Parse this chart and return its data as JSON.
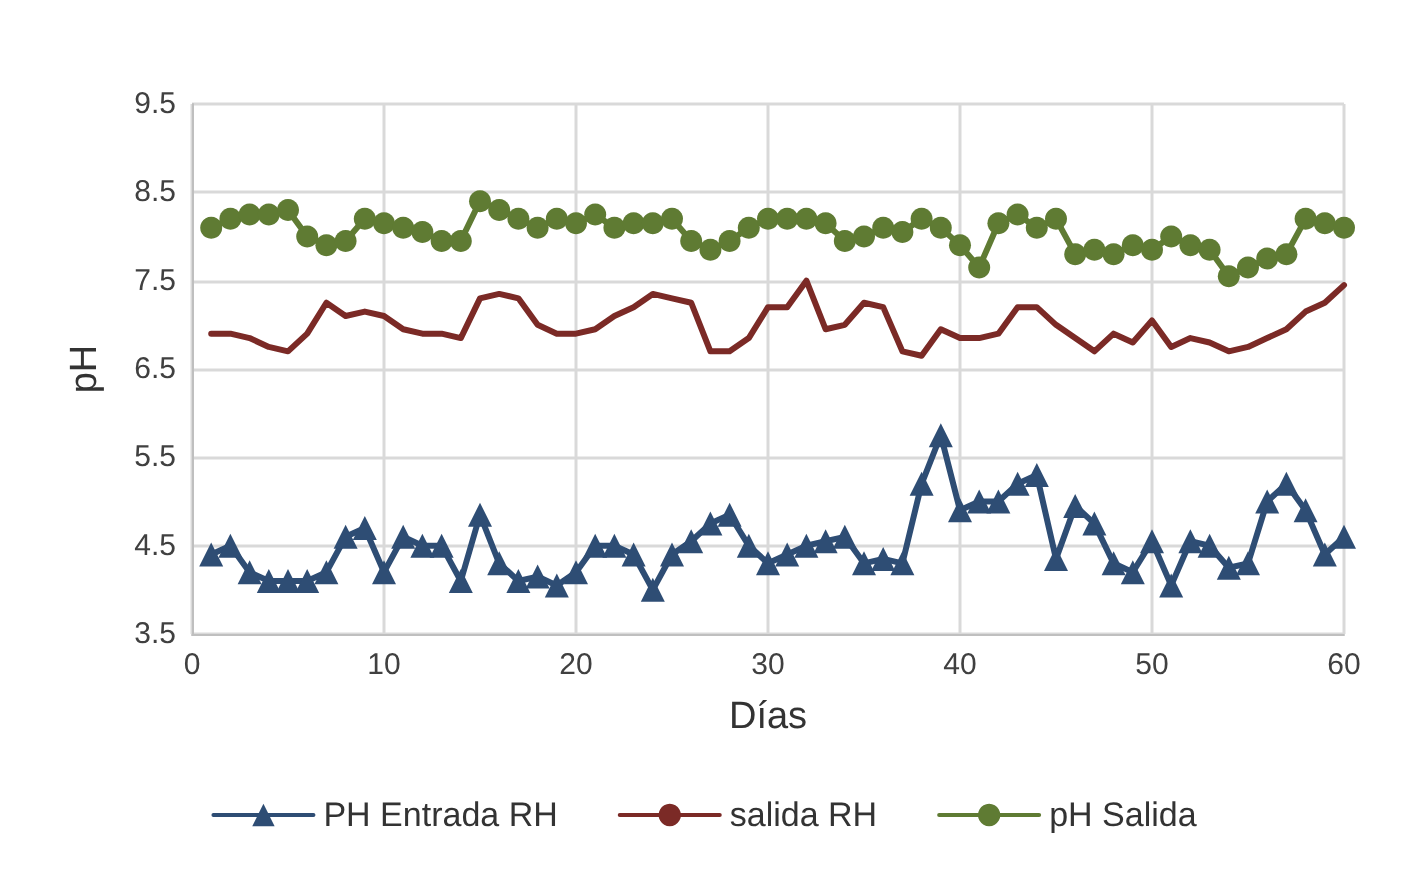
{
  "chart_data": {
    "type": "line",
    "xlabel": "Días",
    "ylabel": "pH",
    "x": [
      1,
      2,
      3,
      4,
      5,
      6,
      7,
      8,
      9,
      10,
      11,
      12,
      13,
      14,
      15,
      16,
      17,
      18,
      19,
      20,
      21,
      22,
      23,
      24,
      25,
      26,
      27,
      28,
      29,
      30,
      31,
      32,
      33,
      34,
      35,
      36,
      37,
      38,
      39,
      40,
      41,
      42,
      43,
      44,
      45,
      46,
      47,
      48,
      49,
      50,
      51,
      52,
      53,
      54,
      55,
      56,
      57,
      58,
      59,
      60
    ],
    "series": [
      {
        "name": "PH Entrada RH",
        "color": "#2e4d74",
        "marker": "triangle",
        "values": [
          4.4,
          4.5,
          4.2,
          4.1,
          4.1,
          4.1,
          4.2,
          4.6,
          4.7,
          4.2,
          4.6,
          4.5,
          4.5,
          4.1,
          4.85,
          4.3,
          4.1,
          4.15,
          4.05,
          4.2,
          4.5,
          4.5,
          4.4,
          4.0,
          4.4,
          4.55,
          4.75,
          4.85,
          4.5,
          4.3,
          4.4,
          4.5,
          4.55,
          4.6,
          4.3,
          4.35,
          4.3,
          5.2,
          5.75,
          4.9,
          5.0,
          5.0,
          5.2,
          5.3,
          4.35,
          4.95,
          4.75,
          4.3,
          4.2,
          4.55,
          4.05,
          4.55,
          4.5,
          4.25,
          4.3,
          5.0,
          5.2,
          4.9,
          4.4,
          4.6
        ]
      },
      {
        "name": "salida RH",
        "color": "#7b2a26",
        "marker": "none",
        "values": [
          6.9,
          6.9,
          6.85,
          6.75,
          6.7,
          6.9,
          7.25,
          7.1,
          7.15,
          7.1,
          6.95,
          6.9,
          6.9,
          6.85,
          7.3,
          7.35,
          7.3,
          7.0,
          6.9,
          6.9,
          6.95,
          7.1,
          7.2,
          7.35,
          7.3,
          7.25,
          6.7,
          6.7,
          6.85,
          7.2,
          7.2,
          7.5,
          6.95,
          7.0,
          7.25,
          7.2,
          6.7,
          6.65,
          6.95,
          6.85,
          6.85,
          6.9,
          7.2,
          7.2,
          7.0,
          6.85,
          6.7,
          6.9,
          6.8,
          7.05,
          6.75,
          6.85,
          6.8,
          6.7,
          6.75,
          6.85,
          6.95,
          7.15,
          7.25,
          7.45
        ]
      },
      {
        "name": "pH Salida",
        "color": "#5f7b33",
        "marker": "circle",
        "values": [
          8.1,
          8.2,
          8.25,
          8.25,
          8.3,
          8.0,
          7.9,
          7.95,
          8.2,
          8.15,
          8.1,
          8.05,
          7.95,
          7.95,
          8.4,
          8.3,
          8.2,
          8.1,
          8.2,
          8.15,
          8.25,
          8.1,
          8.15,
          8.15,
          8.2,
          7.95,
          7.85,
          7.95,
          8.1,
          8.2,
          8.2,
          8.2,
          8.15,
          7.95,
          8.0,
          8.1,
          8.05,
          8.2,
          8.1,
          7.9,
          7.65,
          8.15,
          8.25,
          8.1,
          8.2,
          7.8,
          7.85,
          7.8,
          7.9,
          7.85,
          8.0,
          7.9,
          7.85,
          7.55,
          7.65,
          7.75,
          7.8,
          8.2,
          8.15,
          8.1
        ]
      }
    ],
    "xlim": [
      0,
      60
    ],
    "xticks": [
      0,
      10,
      20,
      30,
      40,
      50,
      60
    ],
    "ylim": [
      3.5,
      9.5
    ],
    "yticks": [
      3.5,
      4.5,
      5.5,
      6.5,
      7.5,
      8.5,
      9.5
    ],
    "grid": true,
    "legend": "bottom",
    "line_style": "solid"
  }
}
